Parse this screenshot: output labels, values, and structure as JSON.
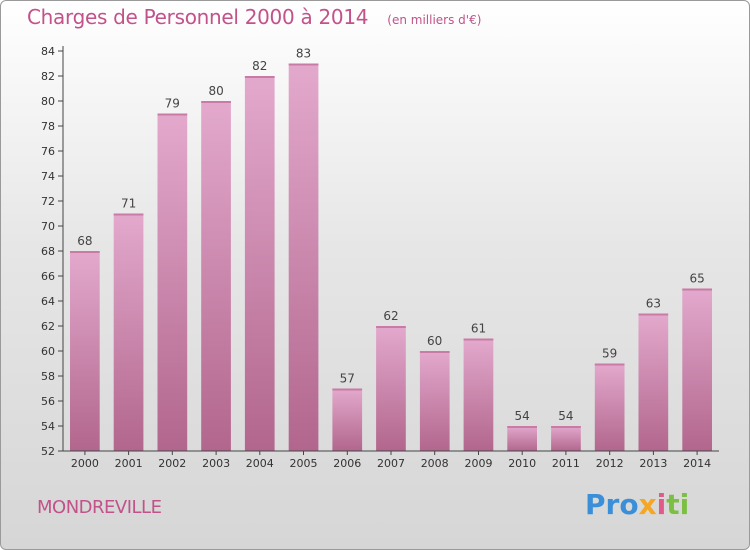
{
  "header": {
    "title": "Charges de Personnel 2000 à 2014",
    "subtitle": "(en milliers d'€)"
  },
  "footer": {
    "town": "MONDREVILLE",
    "logo": "Proxiti"
  },
  "colors": {
    "title": "#c2528a",
    "bar_top": "#e2a8cc",
    "bar_bottom": "#b5698f",
    "axis": "#444444"
  },
  "chart_data": {
    "type": "bar",
    "categories": [
      "2000",
      "2001",
      "2002",
      "2003",
      "2004",
      "2005",
      "2006",
      "2007",
      "2008",
      "2009",
      "2010",
      "2011",
      "2012",
      "2013",
      "2014"
    ],
    "values": [
      68,
      71,
      79,
      80,
      82,
      83,
      57,
      62,
      60,
      61,
      54,
      54,
      59,
      63,
      65
    ],
    "ylim": [
      52,
      84
    ],
    "yticks": [
      52,
      54,
      56,
      58,
      60,
      62,
      64,
      66,
      68,
      70,
      72,
      74,
      76,
      78,
      80,
      82,
      84
    ],
    "grid": false,
    "legend": "none"
  }
}
